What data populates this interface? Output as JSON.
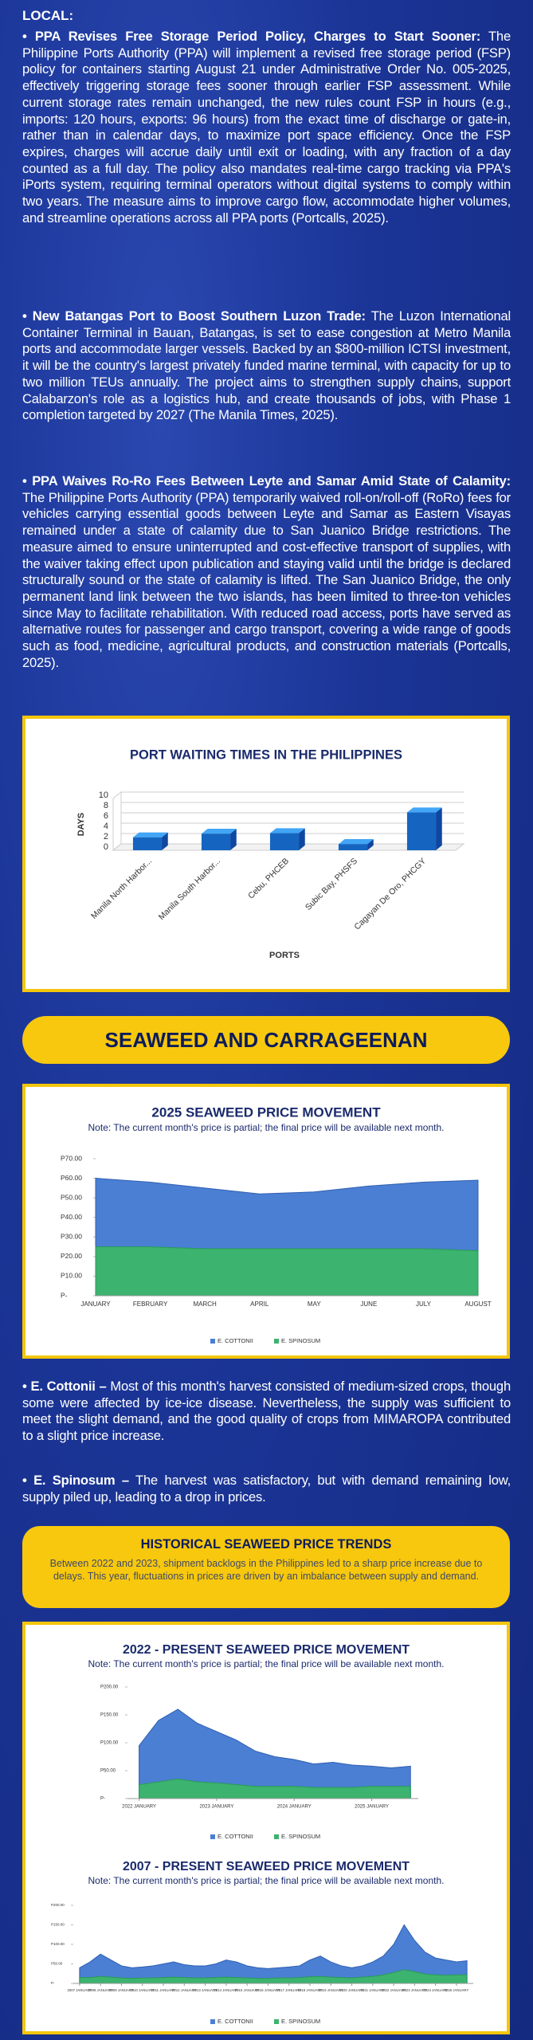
{
  "heading": "LOCAL:",
  "articles": [
    {
      "title": "PPA Revises Free Storage Period Policy, Charges to Start Sooner:",
      "body": "The Philippine Ports Authority (PPA) will implement a revised free storage period (FSP) policy for containers starting August 21 under Administrative Order No. 005-2025, effectively triggering storage fees sooner through earlier FSP assessment. While current storage rates remain unchanged, the new rules count FSP in hours (e.g., imports: 120 hours, exports: 96 hours) from the exact time of discharge or gate-in, rather than in calendar days, to maximize port space efficiency. Once the FSP expires, charges will accrue daily until exit or loading, with any fraction of a day counted as a full day. The policy also mandates real-time cargo tracking via PPA's iPorts system, requiring terminal operators without digital systems to comply within two years. The measure aims to improve cargo flow, accommodate higher volumes, and streamline operations across all PPA ports (Portcalls, 2025)."
    },
    {
      "title": "New Batangas Port to Boost Southern Luzon Trade:",
      "body": "The Luzon International Container Terminal in Bauan, Batangas, is set to ease congestion at Metro Manila ports and accommodate larger vessels. Backed by an $800-million ICTSI investment, it will be the country's largest privately funded marine terminal, with capacity for up to two million TEUs annually. The project aims to strengthen supply chains, support Calabarzon's role as a logistics hub, and create thousands of jobs, with Phase 1 completion targeted by 2027 (The Manila Times, 2025)."
    },
    {
      "title": "PPA Waives Ro-Ro Fees Between Leyte and Samar Amid State of Calamity:",
      "body": "The Philippine Ports Authority (PPA) temporarily waived roll-on/roll-off (RoRo) fees for vehicles carrying essential goods between Leyte and Samar as Eastern Visayas remained under a state of calamity due to San Juanico Bridge restrictions. The measure aimed to ensure uninterrupted and cost-effective transport of supplies, with the waiver taking effect upon publication and staying valid until the bridge is declared structurally sound or the state of calamity is lifted. The San Juanico Bridge, the only permanent land link between the two islands, has been limited to three-ton vehicles since May to facilitate rehabilitation. With reduced road access, ports have served as alternative routes for passenger and cargo transport, covering a wide range of goods such as food, medicine, agricultural products, and construction materials (Portcalls, 2025)."
    }
  ],
  "section_banner": "SEAWEED AND CARRAGEENAN",
  "seaweed_notes": [
    {
      "title": "E. Cottonii –",
      "body": "Most of this month's harvest consisted of medium-sized crops, though some were affected by ice-ice disease. Nevertheless, the supply was sufficient to meet the slight demand, and the good quality of crops from MIMAROPA contributed to a slight price increase."
    },
    {
      "title": "E. Spinosum –",
      "body": "The harvest was satisfactory, but with demand remaining low, supply piled up, leading to a drop in prices."
    }
  ],
  "historical": {
    "title": "HISTORICAL SEAWEED PRICE TRENDS",
    "body": "Between 2022 and 2023, shipment backlogs in the Philippines led to a sharp price increase due to delays. This year, fluctuations in prices are driven by an imbalance between supply and demand."
  },
  "chart_data": [
    {
      "type": "bar3d",
      "title": "PORT WAITING TIMES IN THE PHILIPPINES",
      "ylabel": "DAYS",
      "xlabel": "PORTS",
      "categories": [
        "Manila North Harbor...",
        "Manila South Harbor...",
        "Cebu, PHCEB",
        "Subic Bay, PHSFS",
        "Cagayan De Oro, PHCGY"
      ],
      "values": [
        2.5,
        3.2,
        3.3,
        1.2,
        7.3
      ],
      "color": "#1565c0",
      "ylim": [
        0,
        10
      ],
      "yticks": [
        0,
        2,
        4,
        6,
        8,
        10
      ],
      "grid": true
    },
    {
      "type": "area",
      "title": "2025 SEAWEED PRICE MOVEMENT",
      "subtitle": "Note: The current month's price is partial; the final price will be available next month.",
      "categories": [
        "JANUARY",
        "FEBRUARY",
        "MARCH",
        "APRIL",
        "MAY",
        "JUNE",
        "JULY",
        "AUGUST"
      ],
      "series": [
        {
          "name": "E. COTTONII",
          "color": "#4a7fd4",
          "values": [
            60,
            58,
            55,
            52,
            53,
            56,
            58,
            59
          ]
        },
        {
          "name": "E. SPINOSUM",
          "color": "#3cb36e",
          "values": [
            25,
            25,
            24,
            24,
            24,
            24,
            24,
            23
          ]
        }
      ],
      "ylim": [
        0,
        70
      ],
      "yticks": [
        {
          "value": 0,
          "label": "P-"
        },
        {
          "value": 10,
          "label": "P10.00"
        },
        {
          "value": 20,
          "label": "P20.00"
        },
        {
          "value": 30,
          "label": "P30.00"
        },
        {
          "value": 40,
          "label": "P40.00"
        },
        {
          "value": 50,
          "label": "P50.00"
        },
        {
          "value": 60,
          "label": "P60.00"
        },
        {
          "value": 70,
          "label": "P70.00"
        }
      ]
    },
    {
      "type": "area",
      "title": "2022 - PRESENT SEAWEED PRICE MOVEMENT",
      "subtitle": "Note: The current month's price is partial; the final price will be available next month.",
      "x": [
        2022,
        2022.25,
        2022.5,
        2022.75,
        2023,
        2023.25,
        2023.5,
        2023.75,
        2024,
        2024.25,
        2024.5,
        2024.75,
        2025,
        2025.25,
        2025.5
      ],
      "series": [
        {
          "name": "E. COTTONII",
          "color": "#4a7fd4",
          "values": [
            95,
            140,
            160,
            135,
            120,
            105,
            85,
            75,
            70,
            62,
            65,
            60,
            58,
            55,
            58
          ]
        },
        {
          "name": "E. SPINOSUM",
          "color": "#3cb36e",
          "values": [
            25,
            30,
            35,
            30,
            28,
            25,
            22,
            22,
            22,
            20,
            20,
            20,
            22,
            22,
            22
          ]
        }
      ],
      "xlim": [
        2021.85,
        2025.6
      ],
      "xticks": [
        {
          "value": 2022,
          "label": "2022 JANUARY"
        },
        {
          "value": 2023,
          "label": "2023 JANUARY"
        },
        {
          "value": 2024,
          "label": "2024 JANUARY"
        },
        {
          "value": 2025,
          "label": "2025 JANUARY"
        }
      ],
      "ylim": [
        0,
        200
      ],
      "yticks": [
        {
          "value": 0,
          "label": "P-"
        },
        {
          "value": 50,
          "label": "P50.00"
        },
        {
          "value": 100,
          "label": "P100.00"
        },
        {
          "value": 150,
          "label": "P150.00"
        },
        {
          "value": 200,
          "label": "P200.00"
        }
      ]
    },
    {
      "type": "area",
      "title": "2007 - PRESENT SEAWEED PRICE MOVEMENT",
      "subtitle": "Note: The current month's price is partial; the final price will be available next month.",
      "x": [
        2007,
        2007.5,
        2008,
        2008.5,
        2009,
        2009.5,
        2010,
        2010.5,
        2011,
        2011.5,
        2012,
        2012.5,
        2013,
        2013.5,
        2014,
        2014.5,
        2015,
        2015.5,
        2016,
        2016.5,
        2017,
        2017.5,
        2018,
        2018.5,
        2019,
        2019.5,
        2020,
        2020.5,
        2021,
        2021.5,
        2022,
        2022.5,
        2023,
        2023.5,
        2024,
        2024.5,
        2025,
        2025.5
      ],
      "series": [
        {
          "name": "E. COTTONII",
          "color": "#4a7fd4",
          "values": [
            40,
            55,
            75,
            60,
            45,
            40,
            42,
            45,
            50,
            55,
            48,
            45,
            45,
            50,
            60,
            55,
            45,
            40,
            38,
            40,
            42,
            45,
            60,
            70,
            55,
            45,
            40,
            45,
            55,
            70,
            100,
            150,
            110,
            80,
            65,
            60,
            55,
            58
          ]
        },
        {
          "name": "E. SPINOSUM",
          "color": "#3cb36e",
          "values": [
            15,
            15,
            18,
            16,
            14,
            13,
            14,
            14,
            15,
            16,
            15,
            14,
            14,
            15,
            16,
            15,
            14,
            13,
            13,
            14,
            14,
            15,
            17,
            18,
            16,
            15,
            14,
            16,
            18,
            22,
            28,
            35,
            30,
            24,
            22,
            21,
            22,
            22
          ]
        }
      ],
      "xlim": [
        2006.7,
        2025.8
      ],
      "xticks": [
        {
          "value": 2007,
          "label": "2007 JANUARY"
        },
        {
          "value": 2008,
          "label": "2008 JANUARY"
        },
        {
          "value": 2009,
          "label": "2009 JANUARY"
        },
        {
          "value": 2010,
          "label": "2010 JANUARY"
        },
        {
          "value": 2011,
          "label": "2011 JANUARY"
        },
        {
          "value": 2012,
          "label": "2012 JANUARY"
        },
        {
          "value": 2013,
          "label": "2013 JANUARY"
        },
        {
          "value": 2014,
          "label": "2014 JANUARY"
        },
        {
          "value": 2015,
          "label": "2015 JANUARY"
        },
        {
          "value": 2016,
          "label": "2016 JANUARY"
        },
        {
          "value": 2017,
          "label": "2017 JANUARY"
        },
        {
          "value": 2018,
          "label": "2018 JANUARY"
        },
        {
          "value": 2019,
          "label": "2019 JANUARY"
        },
        {
          "value": 2020,
          "label": "2020 JANUARY"
        },
        {
          "value": 2021,
          "label": "2021 JANUARY"
        },
        {
          "value": 2022,
          "label": "2022 JANUARY"
        },
        {
          "value": 2023,
          "label": "2023 JANUARY"
        },
        {
          "value": 2024,
          "label": "2024 JANUARY"
        },
        {
          "value": 2025,
          "label": "2025 JANUARY"
        }
      ],
      "ylim": [
        0,
        200
      ],
      "yticks": [
        {
          "value": 0,
          "label": "P-"
        },
        {
          "value": 50,
          "label": "P50.00"
        },
        {
          "value": 100,
          "label": "P100.00"
        },
        {
          "value": 150,
          "label": "P150.00"
        },
        {
          "value": 200,
          "label": "P200.00"
        }
      ]
    }
  ]
}
